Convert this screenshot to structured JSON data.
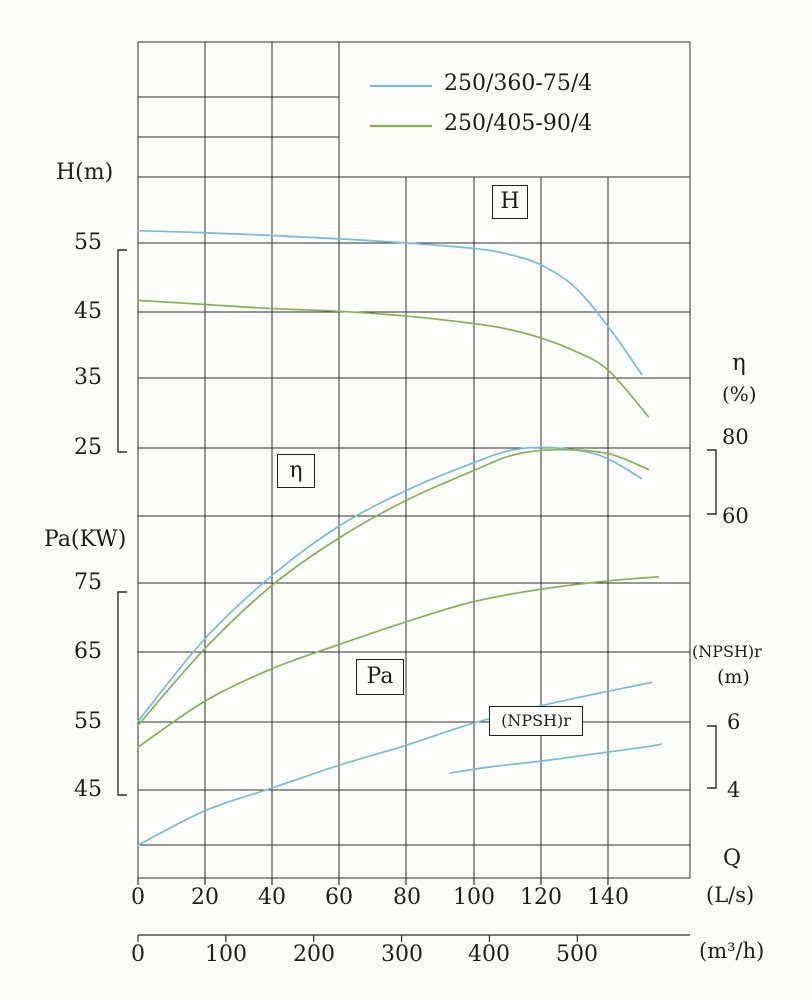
{
  "labels": {
    "h_axis": "H(m)",
    "pa_axis": "Pa(KW)",
    "eta_axis": "η",
    "eta_unit": "(%)",
    "npshr_axis": "(NPSH)r",
    "npshr_unit": "(m)",
    "q_axis": "Q",
    "q_unit_ls": "(L/s)",
    "q_unit_m3h": "(m³/h)",
    "curve_box_h": "H",
    "curve_box_eta": "η",
    "curve_box_pa": "Pa",
    "curve_box_npshr": "(NPSH)r"
  },
  "chart_data": {
    "type": "line",
    "x": {
      "label": "Q",
      "units": [
        "L/s",
        "m³/h"
      ],
      "range_ls": [
        0,
        164
      ],
      "ticks_ls": [
        0,
        20,
        40,
        60,
        80,
        100,
        120,
        140
      ],
      "ticks_m3h": [
        0,
        100,
        200,
        300,
        400,
        500
      ]
    },
    "axes": {
      "H": {
        "label": "H(m)",
        "ticks": [
          55,
          45,
          35,
          25
        ]
      },
      "Pa": {
        "label": "Pa(KW)",
        "ticks": [
          75,
          65,
          55,
          45
        ]
      },
      "eta": {
        "label": "η(%)",
        "ticks": [
          80,
          60
        ]
      },
      "npshr": {
        "label": "(NPSH)r(m)",
        "ticks": [
          6,
          4
        ]
      }
    },
    "grid": true,
    "legend_position": "top-right",
    "series": [
      {
        "pump": "250/360-75/4",
        "color": "#74bedb",
        "curves": {
          "H": {
            "q": [
              0,
              20,
              40,
              60,
              80,
              100,
              110,
              120,
              130,
              140,
              150
            ],
            "v": [
              56.8,
              56.5,
              56.1,
              55.6,
              55,
              54.2,
              53.4,
              51.8,
              48.6,
              42.8,
              35.8
            ]
          },
          "eta": {
            "q": [
              0,
              20,
              40,
              60,
              80,
              100,
              112,
              125,
              138,
              150
            ],
            "v": [
              8,
              29,
              45,
              57.5,
              66.5,
              73.5,
              76.8,
              77.2,
              75.2,
              69.5
            ]
          },
          "Pa": {
            "q": [
              0,
              20,
              40,
              60,
              80,
              100,
              120,
              140,
              153
            ],
            "v": [
              37,
              42,
              45.3,
              48.6,
              51.5,
              54.7,
              57.2,
              59.3,
              60.6
            ]
          },
          "npshr": {
            "q": [
              93,
              105,
              120,
              135,
              150,
              156
            ],
            "v": [
              4.5,
              4.68,
              4.85,
              5.05,
              5.25,
              5.35
            ]
          }
        }
      },
      {
        "pump": "250/405-90/4",
        "color": "#82b44f",
        "curves": {
          "H": {
            "q": [
              0,
              20,
              40,
              60,
              80,
              100,
              110,
              120,
              130,
              140,
              152
            ],
            "v": [
              46.6,
              46,
              45.4,
              45,
              44.3,
              43.2,
              42.4,
              41.1,
              39.2,
              36.4,
              29.6
            ]
          },
          "eta": {
            "q": [
              0,
              20,
              40,
              60,
              80,
              100,
              112,
              125,
              140,
              152
            ],
            "v": [
              7,
              26.5,
              42.5,
              54.5,
              64,
              71.5,
              75.5,
              76.8,
              75.8,
              71.8
            ]
          },
          "Pa": {
            "q": [
              0,
              20,
              40,
              60,
              80,
              100,
              120,
              140,
              155
            ],
            "v": [
              51.2,
              57.9,
              62.6,
              66.1,
              69.4,
              72.3,
              74.1,
              75.3,
              75.9
            ]
          }
        }
      }
    ]
  }
}
